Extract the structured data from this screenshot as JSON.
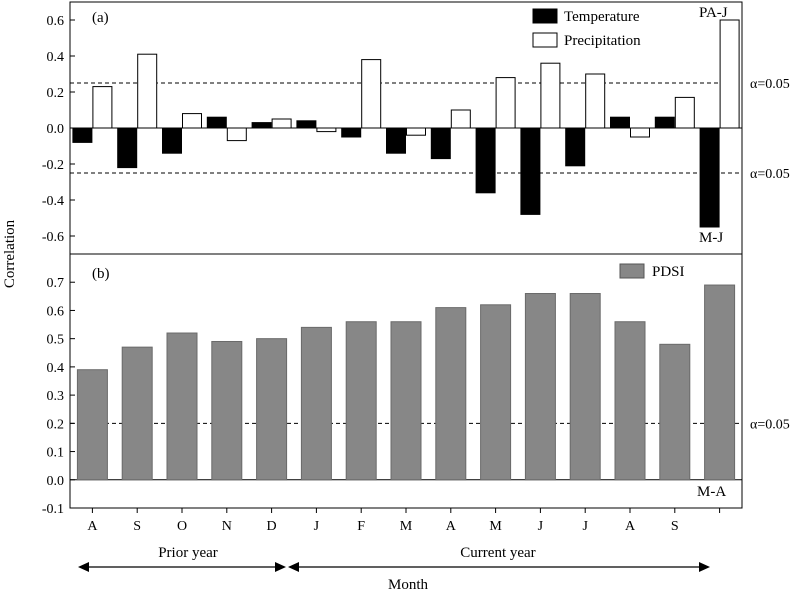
{
  "chart_data": [
    {
      "panel": "(a)",
      "type": "bar",
      "categories": [
        "A",
        "S",
        "O",
        "N",
        "D",
        "J",
        "F",
        "M",
        "A",
        "M",
        "J",
        "J",
        "A",
        "S",
        ""
      ],
      "series": [
        {
          "name": "Temperature",
          "color": "#000000",
          "values": [
            -0.08,
            -0.22,
            -0.14,
            0.06,
            0.03,
            0.04,
            -0.05,
            -0.14,
            -0.17,
            -0.36,
            -0.48,
            -0.21,
            0.06,
            0.06,
            -0.55
          ]
        },
        {
          "name": "Precipitation",
          "color": "#ffffff",
          "values": [
            0.23,
            0.41,
            0.08,
            -0.07,
            0.05,
            -0.02,
            0.38,
            -0.04,
            0.1,
            0.28,
            0.36,
            0.3,
            -0.05,
            0.17,
            0.6
          ]
        }
      ],
      "ylim": [
        -0.7,
        0.7
      ],
      "yticks": [
        "-0.6",
        "-0.4",
        "-0.2",
        "0.0",
        "0.2",
        "0.4",
        "0.6"
      ],
      "significance": [
        {
          "value": 0.25,
          "label": "α=0.05"
        },
        {
          "value": -0.25,
          "label": "α=0.05"
        }
      ],
      "season_labels": {
        "upper": "PA-J",
        "lower": "M-J"
      },
      "legend": "top-right",
      "grid": false
    },
    {
      "panel": "(b)",
      "type": "bar",
      "categories": [
        "A",
        "S",
        "O",
        "N",
        "D",
        "J",
        "F",
        "M",
        "A",
        "M",
        "J",
        "J",
        "A",
        "S",
        ""
      ],
      "series": [
        {
          "name": "PDSI",
          "color": "#878787",
          "values": [
            0.39,
            0.47,
            0.52,
            0.49,
            0.5,
            0.54,
            0.56,
            0.56,
            0.61,
            0.62,
            0.66,
            0.66,
            0.56,
            0.48,
            0.69
          ]
        }
      ],
      "ylim": [
        -0.1,
        0.8
      ],
      "yticks": [
        "-0.1",
        "0.0",
        "0.1",
        "0.2",
        "0.3",
        "0.4",
        "0.5",
        "0.6",
        "0.7"
      ],
      "significance": [
        {
          "value": 0.2,
          "label": "α=0.05"
        }
      ],
      "season_labels": {
        "lower": "M-A"
      },
      "legend": "top-right",
      "grid": false
    }
  ],
  "axes": {
    "ylabel": "Correlation",
    "xlabel": "Month",
    "prior_year_label": "Prior year",
    "current_year_label": "Current year"
  }
}
